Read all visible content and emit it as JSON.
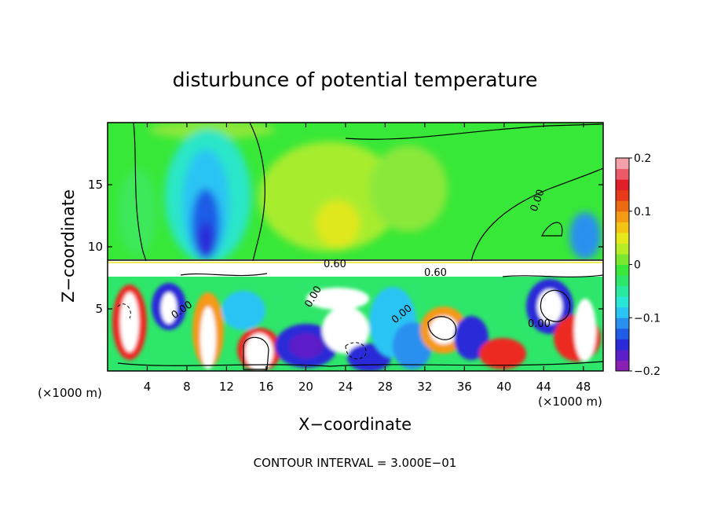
{
  "chart_data": {
    "type": "heatmap",
    "title": "disturbunce of potential temperature",
    "xlabel": "X−coordinate",
    "ylabel": "Z−coordinate",
    "x_unit_left": "(×1000 m)",
    "x_unit_right": "(×1000 m)",
    "footer": "CONTOUR INTERVAL = 3.000E−01",
    "x_ticks": [
      {
        "value": 4,
        "label": "4"
      },
      {
        "value": 8,
        "label": "8"
      },
      {
        "value": 12,
        "label": "12"
      },
      {
        "value": 16,
        "label": "16"
      },
      {
        "value": 20,
        "label": "20"
      },
      {
        "value": 24,
        "label": "24"
      },
      {
        "value": 28,
        "label": "28"
      },
      {
        "value": 32,
        "label": "32"
      },
      {
        "value": 36,
        "label": "36"
      },
      {
        "value": 40,
        "label": "40"
      },
      {
        "value": 44,
        "label": "44"
      },
      {
        "value": 48,
        "label": "48"
      }
    ],
    "y_ticks": [
      {
        "value": 5,
        "label": "5"
      },
      {
        "value": 10,
        "label": "10"
      },
      {
        "value": 15,
        "label": "15"
      }
    ],
    "xlim": [
      0,
      50
    ],
    "ylim": [
      0,
      20
    ],
    "colorbar": {
      "range": [
        -0.2,
        0.2
      ],
      "ticks": [
        {
          "value": 0.2,
          "label": "0.2"
        },
        {
          "value": 0.1,
          "label": "0.1"
        },
        {
          "value": 0,
          "label": "0"
        },
        {
          "value": -0.1,
          "label": "−0.1"
        },
        {
          "value": -0.2,
          "label": "−0.2"
        }
      ],
      "colors": [
        "#8a1fb4",
        "#5b1ec8",
        "#2a2ad8",
        "#1f5ce6",
        "#2a90f0",
        "#29c4f4",
        "#2ae6d6",
        "#29e8a0",
        "#2ee66a",
        "#3ae83a",
        "#7ae82e",
        "#b8ec24",
        "#e6e81c",
        "#f4c414",
        "#f49a14",
        "#ec6a12",
        "#e63a18",
        "#e01e2a",
        "#ec5a6a",
        "#f4a0a8"
      ]
    },
    "contour_labels": [
      {
        "x": 23,
        "z": 9.0,
        "text": "0.60"
      },
      {
        "x": 33,
        "z": 8.0,
        "text": "0.60"
      },
      {
        "x": 8,
        "z": 4.2,
        "text": "0.00"
      },
      {
        "x": 30,
        "z": 4.6,
        "text": "0.00"
      },
      {
        "x": 43,
        "z": 4.4,
        "text": "0.00"
      },
      {
        "x": 44,
        "z": 13.0,
        "text": "0.00"
      },
      {
        "x": 20,
        "z": 6.0,
        "text": "0.00"
      }
    ]
  }
}
